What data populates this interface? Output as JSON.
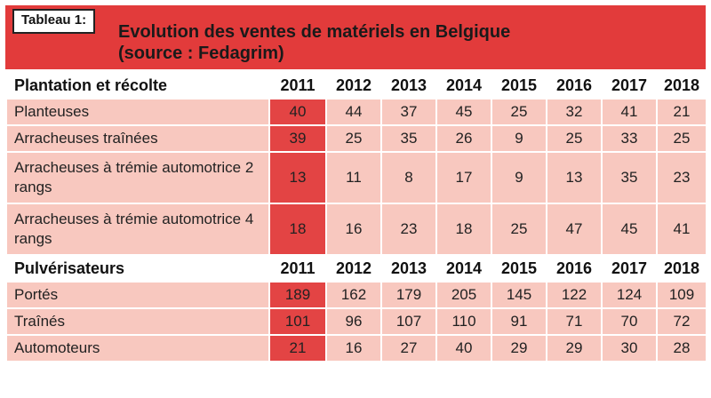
{
  "tag": "Tableau 1:",
  "title_line1": "Evolution des ventes de matériels en Belgique",
  "title_line2": "(source : Fedagrim)",
  "years": [
    "2011",
    "2012",
    "2013",
    "2014",
    "2015",
    "2016",
    "2017",
    "2018"
  ],
  "sections": [
    {
      "heading": "Plantation et récolte",
      "rows": [
        {
          "label": "Planteuses",
          "values": [
            "40",
            "44",
            "37",
            "45",
            "25",
            "32",
            "41",
            "21"
          ]
        },
        {
          "label": "Arracheuses traînées",
          "values": [
            "39",
            "25",
            "35",
            "26",
            "9",
            "25",
            "33",
            "25"
          ]
        },
        {
          "label": "Arracheuses à trémie automotrice 2 rangs",
          "values": [
            "13",
            "11",
            "8",
            "17",
            "9",
            "13",
            "35",
            "23"
          ]
        },
        {
          "label": "Arracheuses à trémie automotrice 4 rangs",
          "values": [
            "18",
            "16",
            "23",
            "18",
            "25",
            "47",
            "45",
            "41"
          ]
        }
      ]
    },
    {
      "heading": "Pulvérisateurs",
      "rows": [
        {
          "label": "Portés",
          "values": [
            "189",
            "162",
            "179",
            "205",
            "145",
            "122",
            "124",
            "109"
          ]
        },
        {
          "label": "Traînés",
          "values": [
            "101",
            "96",
            "107",
            "110",
            "91",
            "71",
            "70",
            "72"
          ]
        },
        {
          "label": "Automoteurs",
          "values": [
            "21",
            "16",
            "27",
            "40",
            "29",
            "29",
            "30",
            "28"
          ]
        }
      ]
    }
  ],
  "colors": {
    "header": "#e23b3b",
    "row": "#f8c8bf",
    "highlight": "#e34444"
  }
}
